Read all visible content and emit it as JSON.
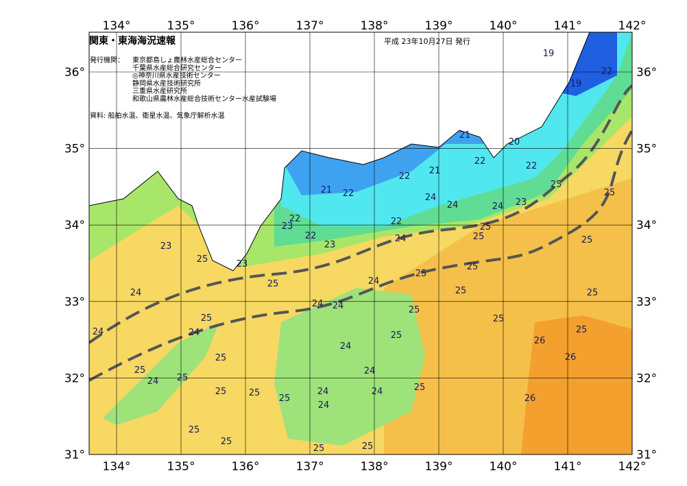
{
  "map": {
    "title": "関東・東海海況速報",
    "date": "平成 23年10月27日 発行",
    "issuers_label": "発行機関：",
    "issuers": [
      "東京都島しょ農林水産総合センター",
      "千葉県水産総合研究センター",
      "◎神奈川県水産技術センター",
      "静岡県水産技術研究所",
      "三重県水産研究所",
      "和歌山県農林水産総合技術センター水産試験場"
    ],
    "source": "資料: 船舶水温、衛星水温、気象庁解析水温",
    "xticks": [
      {
        "value": 134,
        "label": "134°"
      },
      {
        "value": 135,
        "label": "135°"
      },
      {
        "value": 136,
        "label": "136°"
      },
      {
        "value": 137,
        "label": "137°"
      },
      {
        "value": 138,
        "label": "138°"
      },
      {
        "value": 139,
        "label": "139°"
      },
      {
        "value": 140,
        "label": "140°"
      },
      {
        "value": 141,
        "label": "141°"
      },
      {
        "value": 142,
        "label": "142°"
      }
    ],
    "yticks": [
      {
        "value": 31,
        "label": "31°"
      },
      {
        "value": 32,
        "label": "32°"
      },
      {
        "value": 33,
        "label": "33°"
      },
      {
        "value": 34,
        "label": "34°"
      },
      {
        "value": 35,
        "label": "35°"
      },
      {
        "value": 36,
        "label": "36°"
      }
    ],
    "contour_labels": [
      "19",
      "22",
      "19",
      "21",
      "20",
      "22",
      "21",
      "22",
      "22",
      "25",
      "21",
      "22",
      "24",
      "25",
      "23",
      "24",
      "24",
      "22",
      "22",
      "23",
      "25",
      "25",
      "22",
      "24",
      "25",
      "23",
      "23",
      "25",
      "23",
      "25",
      "25",
      "24",
      "25",
      "25",
      "24",
      "25",
      "24",
      "24",
      "25",
      "25",
      "25",
      "24",
      "25",
      "24",
      "25",
      "26",
      "24",
      "26",
      "25",
      "25",
      "24",
      "25",
      "24",
      "25",
      "24",
      "24",
      "25",
      "25",
      "25",
      "26",
      "24",
      "25",
      "25",
      "25",
      "25"
    ]
  }
}
